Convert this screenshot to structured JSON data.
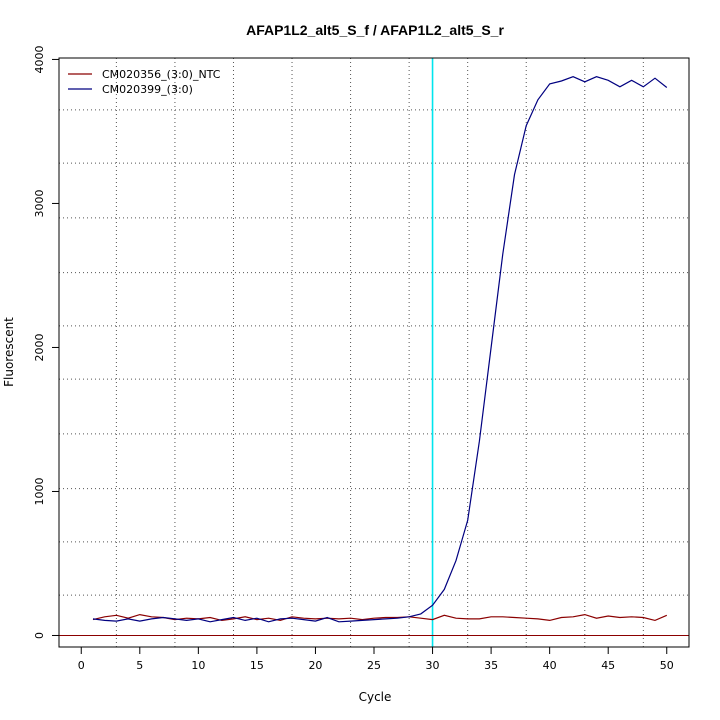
{
  "chart_data": {
    "type": "line",
    "title": "AFAP1L2_alt5_S_f / AFAP1L2_alt5_S_r",
    "xlabel": "Cycle",
    "ylabel": "Fluorescent",
    "xlim": [
      -1.9,
      51.9
    ],
    "ylim": [
      -80,
      4010
    ],
    "x_ticks": [
      0,
      5,
      10,
      15,
      20,
      25,
      30,
      35,
      40,
      45,
      50
    ],
    "y_ticks": [
      0,
      1000,
      2000,
      3000,
      4000
    ],
    "x_grid": [
      3,
      8,
      13,
      18,
      23,
      28,
      33,
      38,
      43,
      48
    ],
    "y_grid": [
      280,
      650,
      1020,
      1400,
      1780,
      2150,
      2520,
      2900,
      3280,
      3650
    ],
    "grid": true,
    "legend_position": "top-left",
    "baseline": {
      "y": 0,
      "color": "#8b0000"
    },
    "threshold": {
      "x": 30,
      "color": "#00e5ee"
    },
    "series": [
      {
        "name": "CM020356_(3:0)_NTC",
        "color": "#8b0000",
        "x": [
          1,
          2,
          3,
          4,
          5,
          6,
          7,
          8,
          9,
          10,
          11,
          12,
          13,
          14,
          15,
          16,
          17,
          18,
          19,
          20,
          21,
          22,
          23,
          24,
          25,
          26,
          27,
          28,
          29,
          30,
          31,
          32,
          33,
          34,
          35,
          36,
          37,
          38,
          39,
          40,
          41,
          42,
          43,
          44,
          45,
          46,
          47,
          48,
          49,
          50
        ],
        "values": [
          110,
          130,
          140,
          120,
          145,
          130,
          125,
          110,
          120,
          115,
          125,
          105,
          115,
          130,
          110,
          120,
          105,
          130,
          120,
          115,
          120,
          115,
          120,
          110,
          120,
          125,
          125,
          130,
          120,
          110,
          140,
          120,
          115,
          115,
          130,
          130,
          125,
          120,
          115,
          105,
          125,
          130,
          145,
          120,
          135,
          125,
          130,
          125,
          105,
          140
        ]
      },
      {
        "name": "CM020399_(3:0)",
        "color": "#000080",
        "x": [
          1,
          2,
          3,
          4,
          5,
          6,
          7,
          8,
          9,
          10,
          11,
          12,
          13,
          14,
          15,
          16,
          17,
          18,
          19,
          20,
          21,
          22,
          23,
          24,
          25,
          26,
          27,
          28,
          29,
          30,
          31,
          32,
          33,
          34,
          35,
          36,
          37,
          38,
          39,
          40,
          41,
          42,
          43,
          44,
          45,
          46,
          47,
          48,
          49,
          50
        ],
        "values": [
          115,
          105,
          100,
          115,
          100,
          115,
          125,
          115,
          105,
          115,
          95,
          110,
          125,
          105,
          120,
          95,
          115,
          120,
          110,
          100,
          125,
          95,
          100,
          105,
          110,
          115,
          120,
          130,
          150,
          210,
          320,
          520,
          800,
          1350,
          2000,
          2650,
          3200,
          3540,
          3720,
          3830,
          3850,
          3880,
          3845,
          3880,
          3855,
          3810,
          3855,
          3810,
          3870,
          3805
        ]
      }
    ]
  }
}
